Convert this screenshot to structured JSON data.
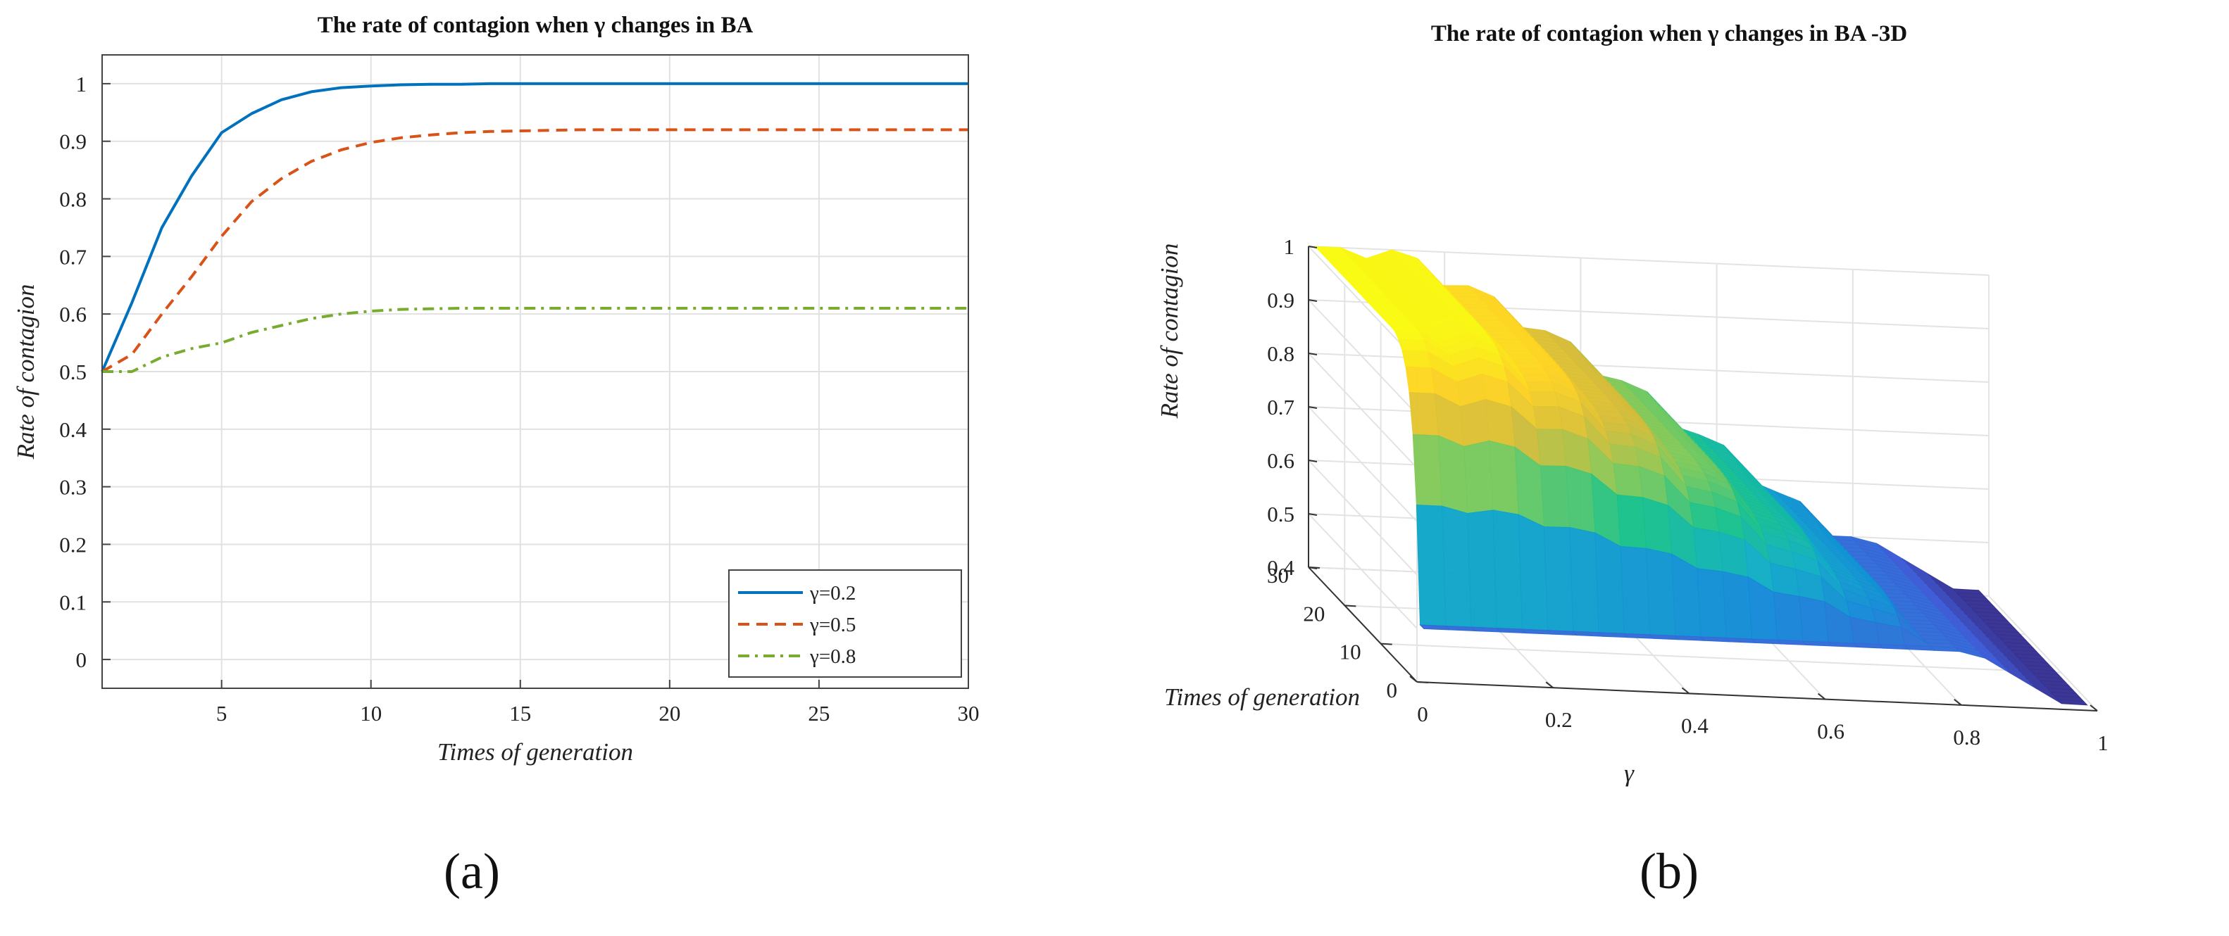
{
  "chart_data": [
    {
      "panel": "a",
      "type": "line",
      "title": "The rate of contagion when γ changes in BA",
      "xlabel": "Times of generation",
      "ylabel": "Rate of contagion",
      "xlim": [
        1,
        30
      ],
      "ylim": [
        -0.05,
        1.05
      ],
      "xticks": [
        5,
        10,
        15,
        20,
        25,
        30
      ],
      "yticks": [
        0,
        0.1,
        0.2,
        0.3,
        0.4,
        0.5,
        0.6,
        0.7,
        0.8,
        0.9,
        1
      ],
      "grid": true,
      "legend_position": "bottom-right",
      "x": [
        1,
        2,
        3,
        4,
        5,
        6,
        7,
        8,
        9,
        10,
        11,
        12,
        13,
        14,
        15,
        16,
        17,
        18,
        19,
        20,
        21,
        22,
        23,
        24,
        25,
        26,
        27,
        28,
        29,
        30
      ],
      "series": [
        {
          "name": "γ=0.2",
          "color": "#0072BD",
          "style": "solid",
          "values": [
            0.5,
            0.62,
            0.75,
            0.84,
            0.915,
            0.948,
            0.972,
            0.986,
            0.993,
            0.996,
            0.998,
            0.999,
            0.999,
            1.0,
            1.0,
            1.0,
            1.0,
            1.0,
            1.0,
            1.0,
            1.0,
            1.0,
            1.0,
            1.0,
            1.0,
            1.0,
            1.0,
            1.0,
            1.0,
            1.0
          ]
        },
        {
          "name": "γ=0.5",
          "color": "#D95319",
          "style": "dashed",
          "values": [
            0.5,
            0.53,
            0.6,
            0.665,
            0.735,
            0.795,
            0.835,
            0.865,
            0.885,
            0.898,
            0.906,
            0.911,
            0.915,
            0.917,
            0.918,
            0.919,
            0.92,
            0.92,
            0.92,
            0.92,
            0.92,
            0.92,
            0.92,
            0.92,
            0.92,
            0.92,
            0.92,
            0.92,
            0.92,
            0.92
          ]
        },
        {
          "name": "γ=0.8",
          "color": "#77AC30",
          "style": "dashdot",
          "values": [
            0.5,
            0.5,
            0.525,
            0.54,
            0.55,
            0.568,
            0.58,
            0.592,
            0.6,
            0.605,
            0.608,
            0.609,
            0.61,
            0.61,
            0.61,
            0.61,
            0.61,
            0.61,
            0.61,
            0.61,
            0.61,
            0.61,
            0.61,
            0.61,
            0.61,
            0.61,
            0.61,
            0.61,
            0.61,
            0.61
          ]
        }
      ]
    },
    {
      "panel": "b",
      "type": "surface",
      "title": "The rate of contagion when γ changes in BA -3D",
      "xlabel": "γ",
      "ylabel": "Times of generation",
      "zlabel": "Rate of contagion",
      "xlim": [
        0,
        1
      ],
      "ylim": [
        0,
        30
      ],
      "zlim": [
        0.4,
        1
      ],
      "xticks": [
        "0",
        "0.2",
        "0.4",
        "0.6",
        "0.8",
        "1"
      ],
      "yticks": [
        "0",
        "10",
        "20",
        "30"
      ],
      "zticks": [
        "0.4",
        "0.5",
        "0.6",
        "0.7",
        "0.8",
        "0.9",
        "1"
      ],
      "grid": true,
      "colormap": "parula",
      "colormap_colors": [
        "#352A87",
        "#3E5BD6",
        "#138AD8",
        "#0FAEC4",
        "#18C18A",
        "#7EC95A",
        "#D5BC38",
        "#FDD222",
        "#F9FB0E"
      ]
    }
  ],
  "labels": {
    "panel_a": "(a)",
    "panel_b": "(b)"
  }
}
